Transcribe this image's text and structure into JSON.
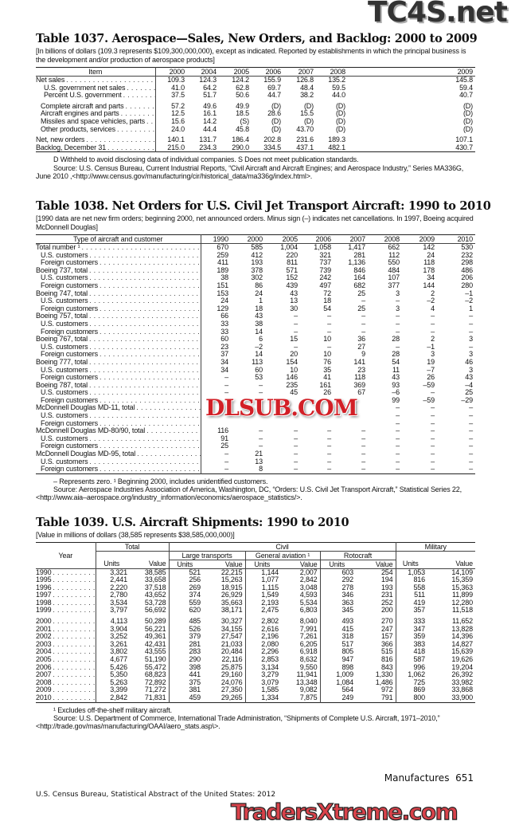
{
  "t1037": {
    "title": "Table 1037. Aerospace—Sales, New Orders, and Backlog: 2000 to 2009",
    "subtitle": "[In billions of dollars (109.3 represents $109,300,000,000), except as indicated. Reported by establishments in which the principal business is the development and/or production of aerospace products]",
    "headers": [
      "Item",
      "2000",
      "2004",
      "2005",
      "2006",
      "2007",
      "2008",
      "2009"
    ],
    "rows": [
      {
        "label": "Net sales",
        "bold": true,
        "indent": 0,
        "values": [
          "109.3",
          "124.3",
          "124.2",
          "155.9",
          "126.8",
          "135.2",
          "145.8"
        ]
      },
      {
        "label": "U.S. government net sales",
        "indent": 2,
        "values": [
          "41.0",
          "64.2",
          "62.8",
          "69.7",
          "48.4",
          "59.5",
          "59.4"
        ]
      },
      {
        "label": "Percent U.S. government",
        "indent": 2,
        "values": [
          "37.5",
          "51.7",
          "50.6",
          "44.7",
          "38.2",
          "44.0",
          "40.7"
        ]
      },
      {
        "gap": true
      },
      {
        "label": "Complete aircraft and parts",
        "indent": 1,
        "values": [
          "57.2",
          "49.6",
          "49.9",
          "(D)",
          "(D)",
          "(D)",
          "(D)"
        ]
      },
      {
        "label": "Aircraft engines and parts",
        "indent": 1,
        "values": [
          "12.5",
          "16.1",
          "18.5",
          "28.6",
          "15.5",
          "(D)",
          "(D)"
        ]
      },
      {
        "label": "Missiles and space vehicles, parts",
        "indent": 1,
        "values": [
          "15.6",
          "14.2",
          "(S)",
          "(D)",
          "(D)",
          "(D)",
          "(D)"
        ]
      },
      {
        "label": "Other products, services",
        "indent": 1,
        "values": [
          "24.0",
          "44.4",
          "45.8",
          "(D)",
          "43.70",
          "(D)",
          "(D)"
        ]
      },
      {
        "gap": true
      },
      {
        "label": "Net, new orders",
        "bold": true,
        "indent": 0,
        "values": [
          "140.1",
          "131.7",
          "186.4",
          "202.8",
          "231.6",
          "189.3",
          "107.1"
        ]
      },
      {
        "label": "Backlog, December 31",
        "indent": 0,
        "values": [
          "215.0",
          "234.3",
          "290.0",
          "334.5",
          "437.1",
          "482.1",
          "430.7"
        ]
      }
    ],
    "footnote": "D Withheld to avoid disclosing data of individual companies. S Does not meet publication standards.",
    "source": "Source: U.S. Census Bureau, Current Industrial Reports, “Civil Aircraft and Aircraft Engines; and Aerospace Industry,” Series MA336G, June 2010 ,<http://www.census.gov/manufacturing/cir/historical_data/ma336g/index.html>."
  },
  "t1038": {
    "title": "Table 1038. Net Orders for U.S. Civil Jet Transport Aircraft: 1990 to 2010",
    "subtitle": "[1990 data are net new firm orders; beginning 2000, net announced orders. Minus sign (–) indicates net cancellations. In 1997, Boeing acquired McDonnell Douglas]",
    "headers": [
      "Type of aircraft and customer",
      "1990",
      "2000",
      "2005",
      "2006",
      "2007",
      "2008",
      "2009",
      "2010"
    ],
    "rows": [
      {
        "label": "Total number ¹",
        "bold": true,
        "indent": 0,
        "values": [
          "670",
          "585",
          "1,004",
          "1,058",
          "1,417",
          "662",
          "142",
          "530"
        ]
      },
      {
        "label": "U.S. customers",
        "indent": 1,
        "values": [
          "259",
          "412",
          "220",
          "321",
          "281",
          "112",
          "24",
          "232"
        ]
      },
      {
        "label": "Foreign customers",
        "indent": 1,
        "values": [
          "411",
          "193",
          "811",
          "737",
          "1,136",
          "550",
          "118",
          "298"
        ]
      },
      {
        "label": "Boeing 737, total",
        "indent": 0,
        "values": [
          "189",
          "378",
          "571",
          "739",
          "846",
          "484",
          "178",
          "486"
        ]
      },
      {
        "label": "U.S. customers",
        "indent": 1,
        "values": [
          "38",
          "302",
          "152",
          "242",
          "164",
          "107",
          "34",
          "206"
        ]
      },
      {
        "label": "Foreign customers",
        "indent": 1,
        "values": [
          "151",
          "86",
          "439",
          "497",
          "682",
          "377",
          "144",
          "280"
        ]
      },
      {
        "label": "Boeing 747, total",
        "indent": 0,
        "values": [
          "153",
          "24",
          "43",
          "72",
          "25",
          "3",
          "2",
          "–1"
        ]
      },
      {
        "label": "U.S. customers",
        "indent": 1,
        "values": [
          "24",
          "1",
          "13",
          "18",
          "–",
          "–",
          "–2",
          "–2"
        ]
      },
      {
        "label": "Foreign customers",
        "indent": 1,
        "values": [
          "129",
          "18",
          "30",
          "54",
          "25",
          "3",
          "4",
          "1"
        ]
      },
      {
        "label": "Boeing 757, total",
        "indent": 0,
        "values": [
          "66",
          "43",
          "–",
          "–",
          "–",
          "–",
          "–",
          "–"
        ]
      },
      {
        "label": "U.S. customers",
        "indent": 1,
        "values": [
          "33",
          "38",
          "–",
          "–",
          "–",
          "–",
          "–",
          "–"
        ]
      },
      {
        "label": "Foreign customers",
        "indent": 1,
        "values": [
          "33",
          "14",
          "–",
          "–",
          "–",
          "–",
          "–",
          "–"
        ]
      },
      {
        "label": "Boeing 767, total",
        "indent": 0,
        "values": [
          "60",
          "6",
          "15",
          "10",
          "36",
          "28",
          "2",
          "3"
        ]
      },
      {
        "label": "U.S. customers",
        "indent": 1,
        "values": [
          "23",
          "–2",
          "–",
          "–",
          "27",
          "–",
          "–1",
          "–"
        ]
      },
      {
        "label": "Foreign customers",
        "indent": 1,
        "values": [
          "37",
          "14",
          "20",
          "10",
          "9",
          "28",
          "3",
          "3"
        ]
      },
      {
        "label": "Boeing 777, total",
        "indent": 0,
        "values": [
          "34",
          "113",
          "154",
          "76",
          "141",
          "54",
          "19",
          "46"
        ]
      },
      {
        "label": "U.S. customers",
        "indent": 1,
        "values": [
          "34",
          "60",
          "10",
          "35",
          "23",
          "11",
          "–7",
          "3"
        ]
      },
      {
        "label": "Foreign customers",
        "indent": 1,
        "values": [
          "–",
          "53",
          "146",
          "41",
          "118",
          "43",
          "26",
          "43"
        ]
      },
      {
        "label": "Boeing 787, total",
        "indent": 0,
        "values": [
          "–",
          "–",
          "235",
          "161",
          "369",
          "93",
          "–59",
          "–4"
        ]
      },
      {
        "label": "U.S. customers",
        "indent": 1,
        "values": [
          "–",
          "–",
          "45",
          "26",
          "67",
          "–6",
          "–",
          "25"
        ]
      },
      {
        "label": "Foreign customers",
        "indent": 1,
        "values": [
          "",
          "",
          "",
          "",
          "",
          "99",
          "–59",
          "–29"
        ]
      },
      {
        "label": "McDonnell Douglas MD-11, total",
        "indent": 0,
        "values": [
          "",
          "",
          "",
          "",
          "",
          "–",
          "–",
          "–"
        ]
      },
      {
        "label": "U.S. customers",
        "indent": 1,
        "values": [
          "",
          "",
          "",
          "",
          "",
          "–",
          "–",
          "–"
        ]
      },
      {
        "label": "Foreign customers",
        "indent": 1,
        "values": [
          "",
          "",
          "",
          "",
          "",
          "–",
          "–",
          "–"
        ]
      },
      {
        "label": "McDonnell Douglas MD-80/90, total",
        "indent": 0,
        "values": [
          "116",
          "–",
          "–",
          "–",
          "–",
          "–",
          "–",
          "–"
        ]
      },
      {
        "label": "U.S. customers",
        "indent": 1,
        "values": [
          "91",
          "–",
          "–",
          "–",
          "–",
          "–",
          "–",
          "–"
        ]
      },
      {
        "label": "Foreign customers",
        "indent": 1,
        "values": [
          "25",
          "–",
          "–",
          "–",
          "–",
          "–",
          "–",
          "–"
        ]
      },
      {
        "label": "McDonnell Douglas MD-95, total",
        "indent": 0,
        "values": [
          "–",
          "21",
          "–",
          "–",
          "–",
          "–",
          "–",
          "–"
        ]
      },
      {
        "label": "U.S. customers",
        "indent": 1,
        "values": [
          "–",
          "13",
          "–",
          "–",
          "–",
          "–",
          "–",
          "–"
        ]
      },
      {
        "label": "Foreign customers",
        "indent": 1,
        "values": [
          "–",
          "8",
          "–",
          "–",
          "–",
          "–",
          "–",
          "–"
        ]
      }
    ],
    "footnote": "– Represents zero. ¹ Beginning 2000, includes unidentified customers.",
    "source": "Source: Aerospace Industries Association of America, Washington, DC, “Orders: U.S. Civil Jet Transport Aircraft,” Statistical Series 22, <http://www.aia–aerospace.org/industry_information/economics/aerospace_statistics/>."
  },
  "t1039": {
    "title": "Table 1039. U.S. Aircraft Shipments: 1990 to 2010",
    "subtitle": "[Value in millions of dollars (38,585 represents $38,585,000,000)]",
    "h_year": "Year",
    "h_total": "Total",
    "h_civil": "Civil",
    "h_military": "Military",
    "h_large": "Large transports",
    "h_general": "General aviation ¹",
    "h_roto": "Rotocraft",
    "h_units": "Units",
    "h_value": "Value",
    "rows": [
      {
        "year": "1990",
        "values": [
          "3,321",
          "38,585",
          "521",
          "22,215",
          "1,144",
          "2,007",
          "603",
          "254",
          "1,053",
          "14,109"
        ]
      },
      {
        "year": "1995",
        "values": [
          "2,441",
          "33,658",
          "256",
          "15,263",
          "1,077",
          "2,842",
          "292",
          "194",
          "816",
          "15,359"
        ]
      },
      {
        "year": "1996",
        "values": [
          "2,220",
          "37,518",
          "269",
          "18,915",
          "1,115",
          "3,048",
          "278",
          "193",
          "558",
          "15,363"
        ]
      },
      {
        "year": "1997",
        "values": [
          "2,780",
          "43,652",
          "374",
          "26,929",
          "1,549",
          "4,593",
          "346",
          "231",
          "511",
          "11,899"
        ]
      },
      {
        "year": "1998",
        "values": [
          "3,534",
          "53,728",
          "559",
          "35,663",
          "2,193",
          "5,534",
          "363",
          "252",
          "419",
          "12,280"
        ]
      },
      {
        "year": "1999",
        "values": [
          "3,797",
          "56,692",
          "620",
          "38,171",
          "2,475",
          "6,803",
          "345",
          "200",
          "357",
          "11,518"
        ]
      },
      {
        "gap": true
      },
      {
        "year": "2000",
        "values": [
          "4,113",
          "50,289",
          "485",
          "30,327",
          "2,802",
          "8,040",
          "493",
          "270",
          "333",
          "11,652"
        ]
      },
      {
        "year": "2001",
        "values": [
          "3,904",
          "56,221",
          "526",
          "34,155",
          "2,616",
          "7,991",
          "415",
          "247",
          "347",
          "13,828"
        ]
      },
      {
        "year": "2002",
        "values": [
          "3,252",
          "49,361",
          "379",
          "27,547",
          "2,196",
          "7,261",
          "318",
          "157",
          "359",
          "14,396"
        ]
      },
      {
        "year": "2003",
        "values": [
          "3,261",
          "42,431",
          "281",
          "21,033",
          "2,080",
          "6,205",
          "517",
          "366",
          "383",
          "14,827"
        ]
      },
      {
        "year": "2004",
        "values": [
          "3,802",
          "43,555",
          "283",
          "20,484",
          "2,296",
          "6,918",
          "805",
          "515",
          "418",
          "15,639"
        ]
      },
      {
        "year": "2005",
        "values": [
          "4,677",
          "51,190",
          "290",
          "22,116",
          "2,853",
          "8,632",
          "947",
          "816",
          "587",
          "19,626"
        ]
      },
      {
        "year": "2006",
        "values": [
          "5,426",
          "55,472",
          "398",
          "25,875",
          "3,134",
          "9,550",
          "898",
          "843",
          "996",
          "19,204"
        ]
      },
      {
        "year": "2007",
        "values": [
          "5,350",
          "68,823",
          "441",
          "29,160",
          "3,279",
          "11,941",
          "1,009",
          "1,330",
          "1,062",
          "26,392"
        ]
      },
      {
        "year": "2008",
        "values": [
          "5,263",
          "72,892",
          "375",
          "24,076",
          "3,079",
          "13,348",
          "1,084",
          "1,486",
          "725",
          "33,982"
        ]
      },
      {
        "year": "2009",
        "values": [
          "3,399",
          "71,272",
          "381",
          "27,350",
          "1,585",
          "9,082",
          "564",
          "972",
          "869",
          "33,868"
        ]
      },
      {
        "year": "2010",
        "values": [
          "2,842",
          "71,831",
          "459",
          "29,265",
          "1,334",
          "7,875",
          "249",
          "791",
          "800",
          "33,900"
        ]
      }
    ],
    "footnote": "¹ Excludes off-the-shelf military aircraft.",
    "source": "Source: U.S. Department of Commerce, International Trade Administration, “Shipments of Complete U.S. Aircraft, 1971–2010,” <http://trade.gov/mas/manufacturing/OAAI/aero_stats.asp\\>."
  },
  "footer": {
    "section": "Manufactures",
    "page": "651",
    "publisher": "U.S. Census Bureau, Statistical Abstract of the United States: 2012"
  },
  "watermarks": {
    "top": "TC4S.net",
    "middle": "DLSUB.COM",
    "bottom": "TradersXtreme.com",
    "colors": {
      "top": "#333333",
      "middle": "#d21f26",
      "bottom": "#d9424a"
    }
  }
}
